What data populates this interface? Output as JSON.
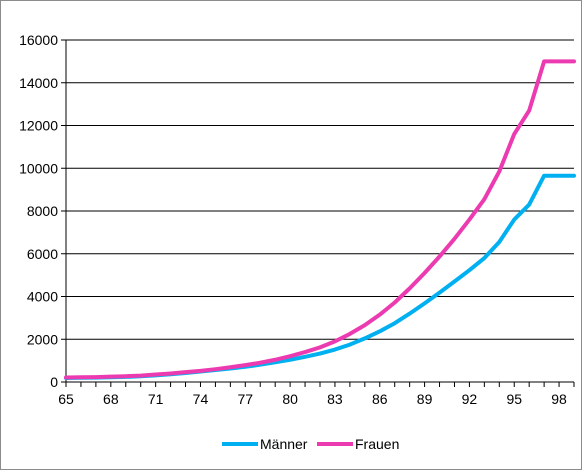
{
  "chart_data": {
    "type": "line",
    "title": "",
    "xlabel": "",
    "ylabel": "",
    "x": [
      65,
      66,
      67,
      68,
      69,
      70,
      71,
      72,
      73,
      74,
      75,
      76,
      77,
      78,
      79,
      80,
      81,
      82,
      83,
      84,
      85,
      86,
      87,
      88,
      89,
      90,
      91,
      92,
      93,
      94,
      95,
      96,
      97,
      98,
      99
    ],
    "x_ticks": [
      65,
      68,
      71,
      74,
      77,
      80,
      83,
      86,
      89,
      92,
      95,
      98
    ],
    "y_ticks": [
      0,
      2000,
      4000,
      6000,
      8000,
      10000,
      12000,
      14000,
      16000
    ],
    "ylim": [
      0,
      16000
    ],
    "grid": "horizontal",
    "legend": "bottom",
    "series": [
      {
        "name": "Männer",
        "color": "#00b0f0",
        "values": [
          190,
          200,
          205,
          220,
          240,
          270,
          310,
          360,
          420,
          490,
          560,
          630,
          710,
          810,
          920,
          1040,
          1180,
          1330,
          1520,
          1750,
          2040,
          2370,
          2750,
          3200,
          3680,
          4180,
          4700,
          5230,
          5800,
          6550,
          7600,
          8300,
          9650,
          9650,
          9650
        ]
      },
      {
        "name": "Frauen",
        "color": "#ec3bb0",
        "values": [
          210,
          220,
          230,
          250,
          270,
          300,
          350,
          400,
          460,
          520,
          600,
          690,
          790,
          900,
          1040,
          1210,
          1400,
          1620,
          1900,
          2250,
          2660,
          3150,
          3720,
          4380,
          5100,
          5870,
          6700,
          7600,
          8550,
          9850,
          11600,
          12700,
          15000,
          15000,
          15000
        ]
      }
    ]
  }
}
